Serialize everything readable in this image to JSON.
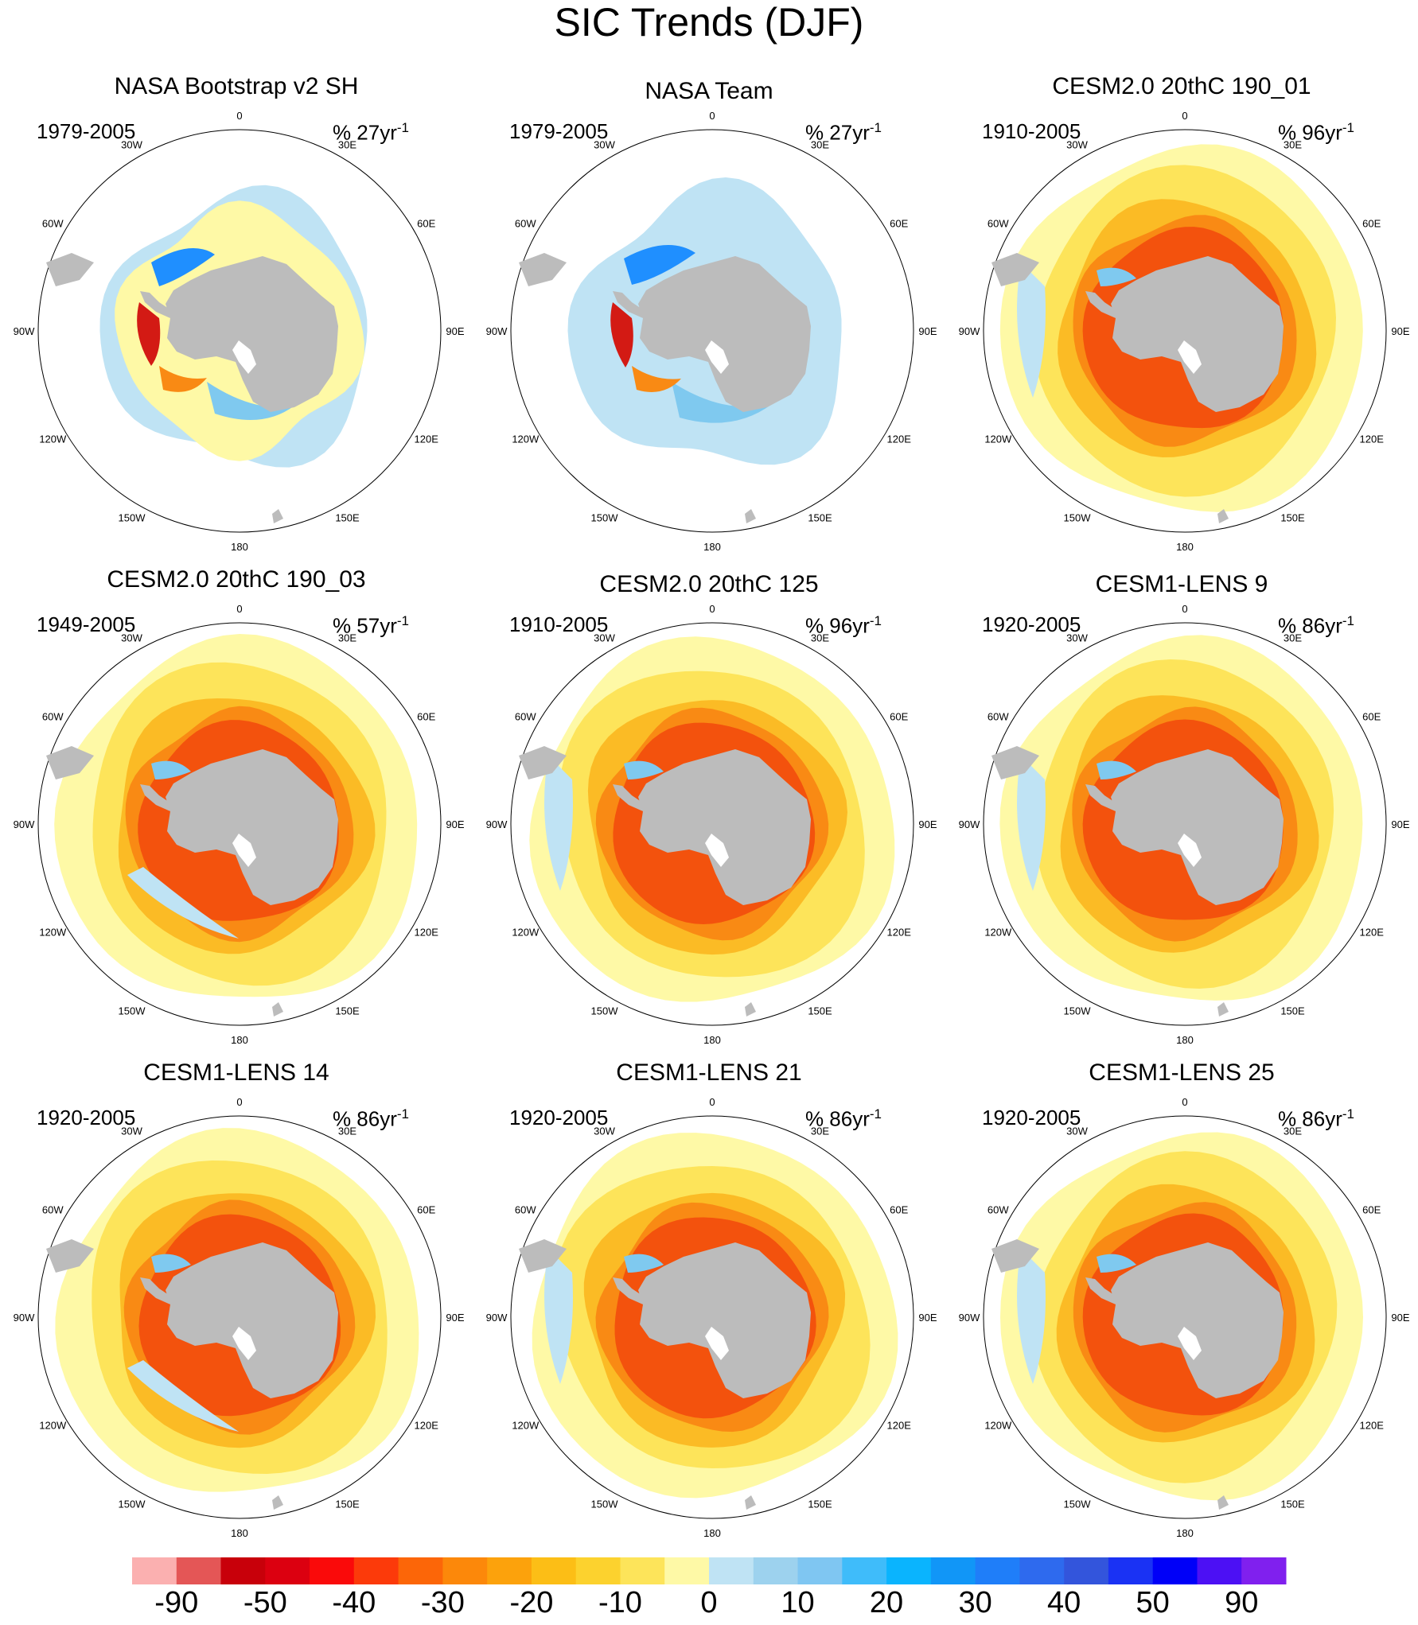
{
  "title": "SIC Trends (DJF)",
  "panels": [
    {
      "title": "NASA Bootstrap v2 SH",
      "period": "1979-2005",
      "units_prefix": "% 27yr",
      "units_exp": "-1",
      "pattern": "obs_bootstrap"
    },
    {
      "title": "NASA Team",
      "period": "1979-2005",
      "units_prefix": "% 27yr",
      "units_exp": "-1",
      "pattern": "obs_team"
    },
    {
      "title": "CESM2.0 20thC 190_01",
      "period": "1910-2005",
      "units_prefix": "% 96yr",
      "units_exp": "-1",
      "pattern": "model_a"
    },
    {
      "title": "CESM2.0 20thC 190_03",
      "period": "1949-2005",
      "units_prefix": "% 57yr",
      "units_exp": "-1",
      "pattern": "model_b"
    },
    {
      "title": "CESM2.0 20thC 125",
      "period": "1910-2005",
      "units_prefix": "% 96yr",
      "units_exp": "-1",
      "pattern": "model_c"
    },
    {
      "title": "CESM1-LENS 9",
      "period": "1920-2005",
      "units_prefix": "% 86yr",
      "units_exp": "-1",
      "pattern": "model_d"
    },
    {
      "title": "CESM1-LENS 14",
      "period": "1920-2005",
      "units_prefix": "% 86yr",
      "units_exp": "-1",
      "pattern": "model_e"
    },
    {
      "title": "CESM1-LENS 21",
      "period": "1920-2005",
      "units_prefix": "% 86yr",
      "units_exp": "-1",
      "pattern": "model_f"
    },
    {
      "title": "CESM1-LENS 25",
      "period": "1920-2005",
      "units_prefix": "% 86yr",
      "units_exp": "-1",
      "pattern": "model_g"
    }
  ],
  "longitude_labels": [
    "0",
    "30E",
    "60E",
    "90E",
    "120E",
    "150E",
    "180",
    "150W",
    "120W",
    "90W",
    "60W",
    "30W"
  ],
  "colors": {
    "land": "#bcbcbc",
    "ocean": "#ffffff",
    "yellow_pale": "#fef9a6",
    "yellow": "#fde45a",
    "orange_light": "#fbbb25",
    "orange": "#f98a14",
    "red_orange": "#f3520d",
    "red": "#d31a14",
    "blue_pale": "#bfe3f4",
    "blue_light": "#7fc9ef",
    "blue": "#1f8fff",
    "blue_dark": "#1f55e6"
  },
  "colorbar": {
    "colors": [
      "#fbb0b0",
      "#e45656",
      "#c8000a",
      "#dc0010",
      "#fa0a0a",
      "#fc3a0a",
      "#fc6608",
      "#fc880a",
      "#fca20c",
      "#fcbe16",
      "#fcd22e",
      "#fde45a",
      "#fef9a6",
      "#bfe3f4",
      "#9dd2ee",
      "#7fc6f2",
      "#3fbcfa",
      "#0ab4fe",
      "#1196f7",
      "#1f7ef9",
      "#2e6aee",
      "#3355dc",
      "#1a32f4",
      "#0000f8",
      "#4c10f4",
      "#8020ee"
    ],
    "labels": [
      "-90",
      "-50",
      "-40",
      "-30",
      "-20",
      "-10",
      "0",
      "10",
      "20",
      "30",
      "40",
      "50",
      "90"
    ]
  }
}
